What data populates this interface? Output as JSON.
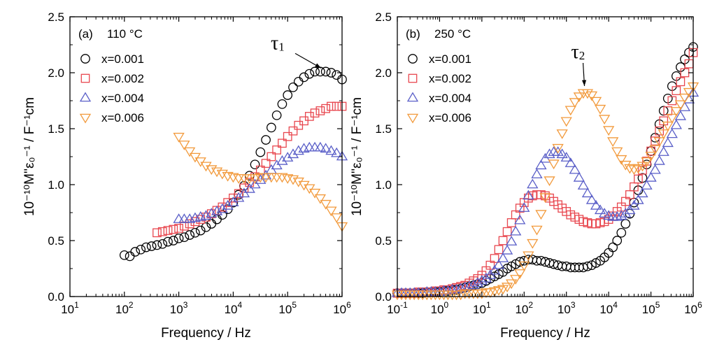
{
  "chart_data": [
    {
      "type": "scatter",
      "panel_label": "(a)",
      "temperature": "110 °C",
      "xlabel": "Frequency / Hz",
      "ylabel": "10⁻¹⁰M''ε₀⁻¹ / F⁻¹cm",
      "x_scale": "log",
      "xlim": [
        10,
        1000000
      ],
      "ylim": [
        0.0,
        2.5
      ],
      "x_ticks": [
        10,
        100,
        1000,
        10000,
        100000,
        1000000
      ],
      "x_tick_labels": [
        {
          "base": "10",
          "exp": "1"
        },
        {
          "base": "10",
          "exp": "2"
        },
        {
          "base": "10",
          "exp": "3"
        },
        {
          "base": "10",
          "exp": "4"
        },
        {
          "base": "10",
          "exp": "5"
        },
        {
          "base": "10",
          "exp": "6"
        }
      ],
      "y_ticks": [
        0.0,
        0.5,
        1.0,
        1.5,
        2.0,
        2.5
      ],
      "y_tick_labels": [
        "0.0",
        "0.5",
        "1.0",
        "1.5",
        "2.0",
        "2.5"
      ],
      "legend_position": "top-left",
      "annotation": {
        "symbol": "τ",
        "subscript": "1",
        "points_to": [
          450000,
          2.01
        ]
      },
      "series": [
        {
          "name": "x=0.001",
          "marker": "circle",
          "color": "#000000",
          "x": [
            100,
            126,
            158,
            200,
            251,
            316,
            398,
            501,
            631,
            794,
            1000,
            1259,
            1585,
            1995,
            2512,
            3162,
            3981,
            5012,
            6310,
            7943,
            10000,
            12589,
            15849,
            19953,
            25119,
            31623,
            39811,
            50119,
            63096,
            79433,
            100000,
            125893,
            158489,
            199526,
            251189,
            316228,
            398107,
            501187,
            630957,
            794328,
            1000000
          ],
          "y": [
            0.37,
            0.36,
            0.4,
            0.42,
            0.44,
            0.45,
            0.46,
            0.47,
            0.49,
            0.5,
            0.52,
            0.53,
            0.55,
            0.57,
            0.59,
            0.62,
            0.65,
            0.69,
            0.73,
            0.78,
            0.84,
            0.91,
            0.99,
            1.08,
            1.18,
            1.29,
            1.4,
            1.51,
            1.62,
            1.72,
            1.8,
            1.87,
            1.92,
            1.96,
            1.99,
            2.01,
            2.01,
            2.01,
            2.0,
            1.98,
            1.94
          ]
        },
        {
          "name": "x=0.002",
          "marker": "square",
          "color": "#e8474f",
          "x": [
            398,
            501,
            631,
            794,
            1000,
            1259,
            1585,
            1995,
            2512,
            3162,
            3981,
            5012,
            6310,
            7943,
            10000,
            12589,
            15849,
            19953,
            25119,
            31623,
            39811,
            50119,
            63096,
            79433,
            100000,
            125893,
            158489,
            199526,
            251189,
            316228,
            398107,
            501187,
            630957,
            794328,
            1000000
          ],
          "y": [
            0.57,
            0.58,
            0.59,
            0.6,
            0.61,
            0.63,
            0.65,
            0.67,
            0.69,
            0.71,
            0.74,
            0.77,
            0.8,
            0.84,
            0.88,
            0.92,
            0.97,
            1.02,
            1.07,
            1.13,
            1.19,
            1.25,
            1.31,
            1.37,
            1.43,
            1.48,
            1.53,
            1.57,
            1.61,
            1.64,
            1.66,
            1.68,
            1.7,
            1.7,
            1.7
          ]
        },
        {
          "name": "x=0.004",
          "marker": "triangle-up",
          "color": "#5a5fc8",
          "x": [
            1000,
            1259,
            1585,
            1995,
            2512,
            3162,
            3981,
            5012,
            6310,
            7943,
            10000,
            12589,
            15849,
            19953,
            25119,
            31623,
            39811,
            50119,
            63096,
            79433,
            100000,
            125893,
            158489,
            199526,
            251189,
            316228,
            398107,
            501187,
            630957,
            794328,
            1000000
          ],
          "y": [
            0.69,
            0.69,
            0.69,
            0.7,
            0.71,
            0.72,
            0.74,
            0.76,
            0.78,
            0.81,
            0.84,
            0.88,
            0.92,
            0.96,
            1.0,
            1.04,
            1.08,
            1.13,
            1.17,
            1.21,
            1.24,
            1.27,
            1.3,
            1.32,
            1.33,
            1.33,
            1.33,
            1.32,
            1.3,
            1.28,
            1.25
          ]
        },
        {
          "name": "x=0.006",
          "marker": "triangle-down",
          "color": "#f29a3c",
          "x": [
            1000,
            1259,
            1585,
            1995,
            2512,
            3162,
            3981,
            5012,
            6310,
            7943,
            10000,
            12589,
            15849,
            19953,
            25119,
            31623,
            39811,
            50119,
            63096,
            79433,
            100000,
            125893,
            158489,
            199526,
            251189,
            316228,
            398107,
            501187,
            630957,
            794328,
            1000000
          ],
          "y": [
            1.43,
            1.36,
            1.3,
            1.25,
            1.21,
            1.17,
            1.14,
            1.12,
            1.1,
            1.08,
            1.07,
            1.06,
            1.06,
            1.06,
            1.06,
            1.07,
            1.07,
            1.07,
            1.07,
            1.07,
            1.06,
            1.05,
            1.03,
            1.0,
            0.97,
            0.93,
            0.88,
            0.83,
            0.77,
            0.71,
            0.63
          ]
        }
      ]
    },
    {
      "type": "scatter",
      "panel_label": "(b)",
      "temperature": "250 °C",
      "xlabel": "Frequency / Hz",
      "ylabel": "10⁻¹⁰M''ε₀⁻¹ / F⁻¹cm",
      "x_scale": "log",
      "xlim": [
        0.1,
        1000000
      ],
      "ylim": [
        0.0,
        2.5
      ],
      "x_ticks": [
        0.1,
        1,
        10,
        100,
        1000,
        10000,
        100000,
        1000000
      ],
      "x_tick_labels": [
        {
          "base": "10",
          "exp": "-1"
        },
        {
          "base": "10",
          "exp": "0"
        },
        {
          "base": "10",
          "exp": "1"
        },
        {
          "base": "10",
          "exp": "2"
        },
        {
          "base": "10",
          "exp": "3"
        },
        {
          "base": "10",
          "exp": "4"
        },
        {
          "base": "10",
          "exp": "5"
        },
        {
          "base": "10",
          "exp": "6"
        }
      ],
      "y_ticks": [
        0.0,
        0.5,
        1.0,
        1.5,
        2.0,
        2.5
      ],
      "y_tick_labels": [
        "0.0",
        "0.5",
        "1.0",
        "1.5",
        "2.0",
        "2.5"
      ],
      "legend_position": "top-left",
      "annotation": {
        "symbol": "τ",
        "subscript": "2",
        "points_to": [
          3000,
          1.85
        ]
      },
      "series": [
        {
          "name": "x=0.001",
          "marker": "circle",
          "color": "#000000",
          "x": [
            0.1,
            0.126,
            0.158,
            0.2,
            0.251,
            0.316,
            0.398,
            0.501,
            0.631,
            0.794,
            1,
            1.26,
            1.58,
            2,
            2.51,
            3.16,
            3.98,
            5.01,
            6.31,
            7.94,
            10,
            12.6,
            15.8,
            20,
            25.1,
            31.6,
            39.8,
            50.1,
            63.1,
            79.4,
            100,
            126,
            158,
            200,
            251,
            316,
            398,
            501,
            631,
            794,
            1000,
            1259,
            1585,
            1995,
            2512,
            3162,
            3981,
            5012,
            6310,
            7943,
            10000,
            12589,
            15849,
            19953,
            25119,
            31623,
            39811,
            50119,
            63096,
            79433,
            100000,
            125893,
            158489,
            199526,
            251189,
            316228,
            398107,
            501187,
            630957,
            794328,
            1000000
          ],
          "y": [
            0.03,
            0.03,
            0.03,
            0.03,
            0.03,
            0.03,
            0.03,
            0.04,
            0.04,
            0.04,
            0.04,
            0.05,
            0.05,
            0.06,
            0.06,
            0.07,
            0.08,
            0.09,
            0.1,
            0.11,
            0.12,
            0.14,
            0.16,
            0.18,
            0.2,
            0.22,
            0.25,
            0.27,
            0.29,
            0.31,
            0.32,
            0.33,
            0.33,
            0.32,
            0.32,
            0.31,
            0.3,
            0.29,
            0.28,
            0.27,
            0.27,
            0.26,
            0.26,
            0.26,
            0.26,
            0.27,
            0.28,
            0.3,
            0.32,
            0.35,
            0.39,
            0.44,
            0.5,
            0.57,
            0.65,
            0.74,
            0.84,
            0.95,
            1.06,
            1.18,
            1.3,
            1.42,
            1.54,
            1.66,
            1.77,
            1.88,
            1.97,
            2.05,
            2.12,
            2.18,
            2.23
          ]
        },
        {
          "name": "x=0.002",
          "marker": "square",
          "color": "#e8474f",
          "x": [
            0.1,
            0.126,
            0.158,
            0.2,
            0.251,
            0.316,
            0.398,
            0.501,
            0.631,
            0.794,
            1,
            1.26,
            1.58,
            2,
            2.51,
            3.16,
            3.98,
            5.01,
            6.31,
            7.94,
            10,
            12.6,
            15.8,
            20,
            25.1,
            31.6,
            39.8,
            50.1,
            63.1,
            79.4,
            100,
            126,
            158,
            200,
            251,
            316,
            398,
            501,
            631,
            794,
            1000,
            1259,
            1585,
            1995,
            2512,
            3162,
            3981,
            5012,
            6310,
            7943,
            10000,
            12589,
            15849,
            19953,
            25119,
            31623,
            39811,
            50119,
            63096,
            79433,
            100000,
            125893,
            158489,
            199526,
            251189,
            316228,
            398107,
            501187,
            630957,
            794328,
            1000000
          ],
          "y": [
            0.03,
            0.03,
            0.03,
            0.03,
            0.03,
            0.04,
            0.04,
            0.04,
            0.04,
            0.05,
            0.05,
            0.06,
            0.06,
            0.07,
            0.08,
            0.09,
            0.1,
            0.12,
            0.14,
            0.16,
            0.19,
            0.23,
            0.28,
            0.34,
            0.42,
            0.5,
            0.58,
            0.66,
            0.73,
            0.79,
            0.84,
            0.88,
            0.9,
            0.91,
            0.91,
            0.9,
            0.88,
            0.85,
            0.82,
            0.79,
            0.76,
            0.73,
            0.71,
            0.69,
            0.67,
            0.66,
            0.65,
            0.65,
            0.66,
            0.67,
            0.69,
            0.72,
            0.76,
            0.8,
            0.85,
            0.91,
            0.98,
            1.05,
            1.13,
            1.21,
            1.3,
            1.39,
            1.48,
            1.57,
            1.66,
            1.75,
            1.84,
            1.92,
            2.0,
            2.08,
            2.18
          ]
        },
        {
          "name": "x=0.004",
          "marker": "triangle-up",
          "color": "#5a5fc8",
          "x": [
            0.1,
            0.126,
            0.158,
            0.2,
            0.251,
            0.316,
            0.398,
            0.501,
            0.631,
            0.794,
            1,
            1.26,
            1.58,
            2,
            2.51,
            3.16,
            3.98,
            5.01,
            6.31,
            7.94,
            10,
            12.6,
            15.8,
            20,
            25.1,
            31.6,
            39.8,
            50.1,
            63.1,
            79.4,
            100,
            126,
            158,
            200,
            251,
            316,
            398,
            501,
            631,
            794,
            1000,
            1259,
            1585,
            1995,
            2512,
            3162,
            3981,
            5012,
            6310,
            7943,
            10000,
            12589,
            15849,
            19953,
            25119,
            31623,
            39811,
            50119,
            63096,
            79433,
            100000,
            125893,
            158489,
            199526,
            251189,
            316228,
            398107,
            501187,
            630957,
            794328,
            1000000
          ],
          "y": [
            0.03,
            0.03,
            0.03,
            0.03,
            0.03,
            0.03,
            0.03,
            0.04,
            0.04,
            0.04,
            0.04,
            0.05,
            0.05,
            0.06,
            0.06,
            0.07,
            0.08,
            0.09,
            0.1,
            0.12,
            0.14,
            0.16,
            0.19,
            0.23,
            0.28,
            0.34,
            0.41,
            0.49,
            0.58,
            0.68,
            0.79,
            0.9,
            1.0,
            1.09,
            1.17,
            1.23,
            1.27,
            1.29,
            1.29,
            1.27,
            1.24,
            1.19,
            1.13,
            1.06,
            0.99,
            0.92,
            0.86,
            0.81,
            0.77,
            0.74,
            0.72,
            0.71,
            0.71,
            0.72,
            0.74,
            0.77,
            0.81,
            0.86,
            0.92,
            0.99,
            1.06,
            1.13,
            1.21,
            1.29,
            1.37,
            1.45,
            1.53,
            1.61,
            1.69,
            1.76,
            1.82
          ]
        },
        {
          "name": "x=0.006",
          "marker": "triangle-down",
          "color": "#f29a3c",
          "x": [
            0.1,
            0.126,
            0.158,
            0.2,
            0.251,
            0.316,
            0.398,
            0.501,
            0.631,
            0.794,
            1,
            1.26,
            1.58,
            2,
            2.51,
            3.16,
            3.98,
            5.01,
            6.31,
            7.94,
            10,
            12.6,
            15.8,
            20,
            25.1,
            31.6,
            39.8,
            50.1,
            63.1,
            79.4,
            100,
            126,
            158,
            200,
            251,
            316,
            398,
            501,
            631,
            794,
            1000,
            1259,
            1585,
            1995,
            2512,
            3162,
            3981,
            5012,
            6310,
            7943,
            10000,
            12589,
            15849,
            19953,
            25119,
            31623,
            39811,
            50119,
            63096,
            79433,
            100000,
            125893,
            158489,
            199526,
            251189,
            316228,
            398107,
            501187,
            630957,
            794328,
            1000000
          ],
          "y": [
            0.02,
            0.02,
            0.02,
            0.02,
            0.02,
            0.02,
            0.02,
            0.02,
            0.02,
            0.02,
            0.02,
            0.02,
            0.02,
            0.02,
            0.02,
            0.02,
            0.03,
            0.03,
            0.03,
            0.03,
            0.03,
            0.04,
            0.04,
            0.05,
            0.06,
            0.07,
            0.09,
            0.12,
            0.16,
            0.21,
            0.28,
            0.37,
            0.48,
            0.6,
            0.74,
            0.89,
            1.04,
            1.19,
            1.33,
            1.46,
            1.57,
            1.67,
            1.74,
            1.79,
            1.82,
            1.82,
            1.8,
            1.75,
            1.68,
            1.59,
            1.49,
            1.39,
            1.3,
            1.23,
            1.18,
            1.15,
            1.14,
            1.15,
            1.17,
            1.21,
            1.26,
            1.32,
            1.39,
            1.46,
            1.53,
            1.6,
            1.66,
            1.72,
            1.78,
            1.83,
            1.88
          ]
        }
      ]
    }
  ]
}
